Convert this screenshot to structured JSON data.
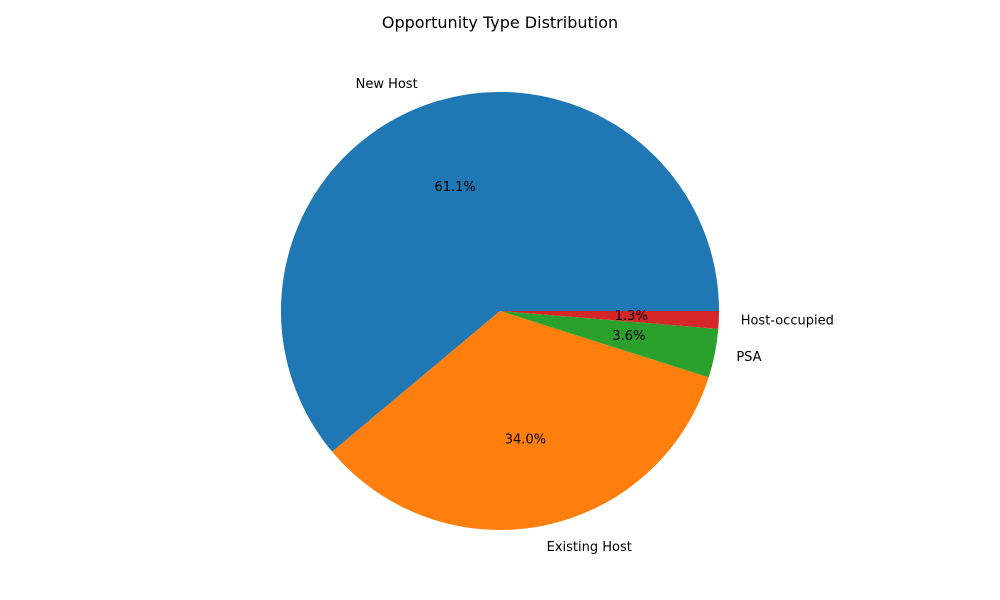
{
  "chart_data": {
    "type": "pie",
    "title": "Opportunity Type Distribution",
    "categories": [
      "New Host",
      "Existing Host",
      "PSA",
      "Host-occupied"
    ],
    "values": [
      61.1,
      34.0,
      3.6,
      1.3
    ],
    "value_labels": [
      "61.1%",
      "34.0%",
      "3.6%",
      "1.3%"
    ],
    "colors": [
      "#1f77b4",
      "#ff7f0e",
      "#2ca02c",
      "#d62728"
    ],
    "start_angle": "0 (3 o'clock)",
    "direction": "counterclockwise",
    "legend": "none"
  }
}
